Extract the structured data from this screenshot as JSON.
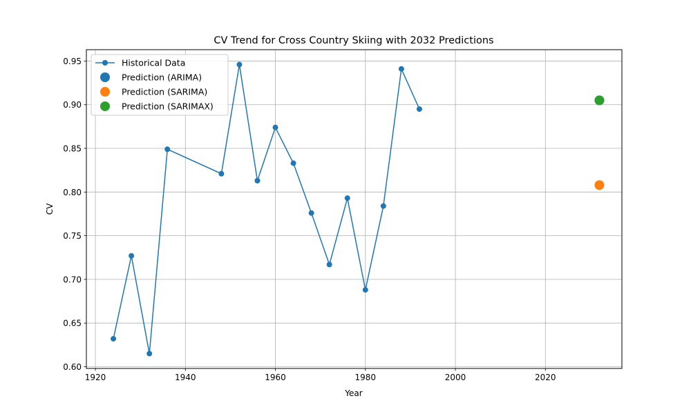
{
  "chart_data": {
    "type": "line",
    "title": "CV Trend for Cross Country Skiing with 2032 Predictions",
    "xlabel": "Year",
    "ylabel": "CV",
    "xlim": [
      1918,
      2037
    ],
    "ylim": [
      0.598,
      0.963
    ],
    "x_ticks": [
      1920,
      1940,
      1960,
      1980,
      2000,
      2020
    ],
    "y_ticks": [
      0.6,
      0.65,
      0.7,
      0.75,
      0.8,
      0.85,
      0.9,
      0.95
    ],
    "x_tick_labels": [
      "1920",
      "1940",
      "1960",
      "1980",
      "2000",
      "2020"
    ],
    "y_tick_labels": [
      "0.60",
      "0.65",
      "0.70",
      "0.75",
      "0.80",
      "0.85",
      "0.90",
      "0.95"
    ],
    "grid": true,
    "legend_position": "top-left",
    "series": [
      {
        "name": "Historical Data",
        "kind": "line-marker",
        "color": "#1f77b4",
        "x": [
          1924,
          1928,
          1932,
          1936,
          1948,
          1952,
          1956,
          1960,
          1964,
          1968,
          1972,
          1976,
          1980,
          1984,
          1988,
          1992
        ],
        "y": [
          0.632,
          0.727,
          0.615,
          0.849,
          0.821,
          0.946,
          0.813,
          0.874,
          0.833,
          0.776,
          0.717,
          0.793,
          0.688,
          0.784,
          0.941,
          0.895
        ]
      },
      {
        "name": "Prediction (ARIMA)",
        "kind": "scatter",
        "color": "#1f77b4",
        "x": [
          2032
        ],
        "y": [
          0.905
        ]
      },
      {
        "name": "Prediction (SARIMA)",
        "kind": "scatter",
        "color": "#ff7f0e",
        "x": [
          2032
        ],
        "y": [
          0.808
        ]
      },
      {
        "name": "Prediction (SARIMAX)",
        "kind": "scatter",
        "color": "#2ca02c",
        "x": [
          2032
        ],
        "y": [
          0.905
        ]
      }
    ]
  }
}
